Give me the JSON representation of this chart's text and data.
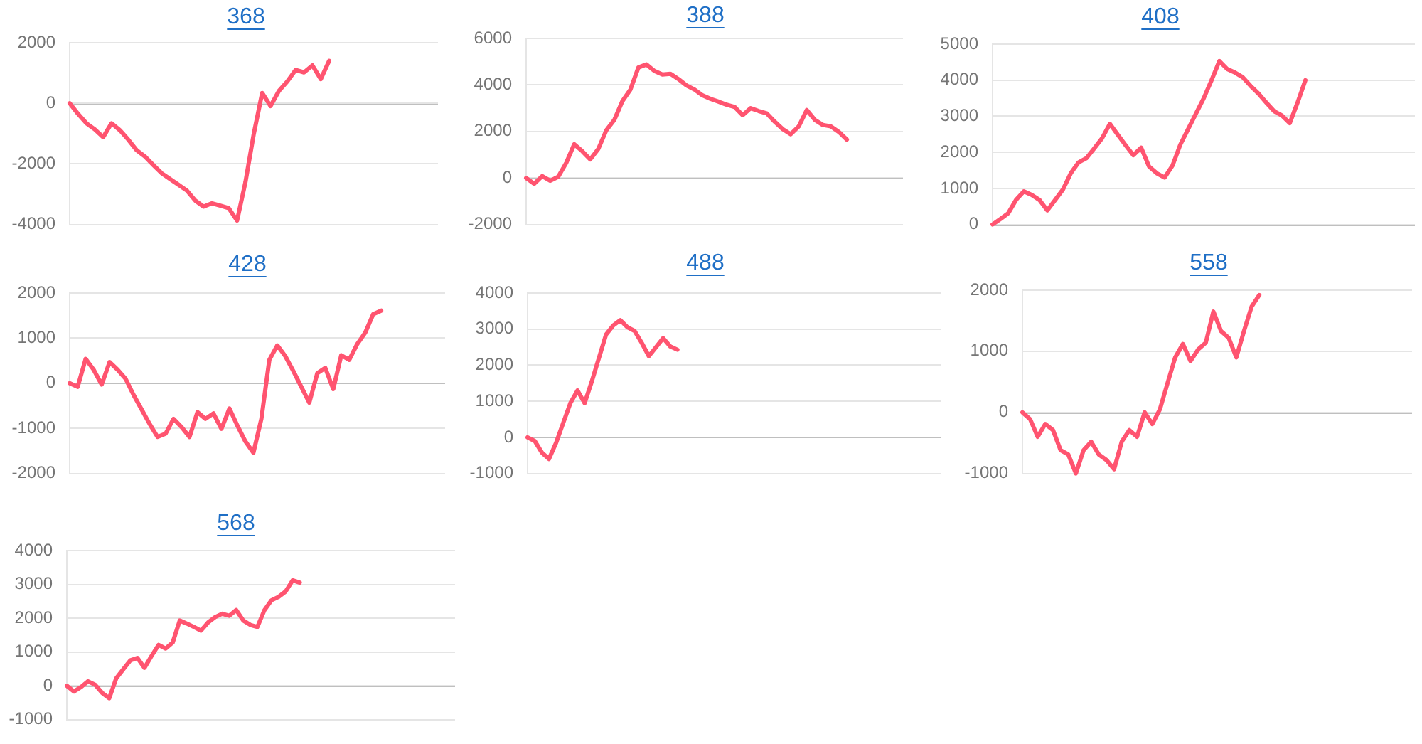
{
  "chart_data": [
    {
      "type": "line",
      "title": "368",
      "categories": [
        null,
        null,
        null,
        null,
        null,
        null,
        null,
        null,
        null,
        null,
        null,
        null,
        null,
        null,
        null,
        null,
        null,
        null,
        null,
        null,
        null,
        null,
        null,
        null,
        null,
        null,
        null,
        null,
        null,
        null,
        null,
        null,
        null,
        null,
        null,
        null,
        null,
        null,
        null,
        null,
        null,
        null,
        null,
        null,
        null
      ],
      "values": [
        0,
        -350,
        -660,
        -860,
        -1120,
        -660,
        -890,
        -1200,
        -1550,
        -1760,
        -2040,
        -2310,
        -2500,
        -2690,
        -2880,
        -3210,
        -3410,
        -3300,
        -3380,
        -3460,
        -3870,
        -2600,
        -1000,
        340,
        -90,
        410,
        720,
        1100,
        1020,
        1250,
        800,
        1400,
        null,
        null,
        null,
        null,
        null,
        null,
        null,
        null,
        null,
        null,
        null,
        null,
        null
      ],
      "color": "#ff5470",
      "ylim": [
        -4000,
        2000
      ],
      "yticks": [
        -4000,
        -2000,
        0,
        2000
      ],
      "grid": "y",
      "tick_labels": "y",
      "ref_lines": [
        {
          "axis": "y",
          "value": 0,
          "color": "#bfbfbf"
        }
      ]
    },
    {
      "type": "line",
      "title": "388",
      "categories": [
        null,
        null,
        null,
        null,
        null,
        null,
        null,
        null,
        null,
        null,
        null,
        null,
        null,
        null,
        null,
        null,
        null,
        null,
        null,
        null,
        null,
        null,
        null,
        null,
        null,
        null,
        null,
        null,
        null,
        null,
        null,
        null,
        null,
        null,
        null,
        null,
        null,
        null,
        null,
        null,
        null,
        null,
        null,
        null,
        null,
        null,
        null,
        null
      ],
      "values": [
        0,
        -250,
        80,
        -120,
        50,
        650,
        1450,
        1150,
        800,
        1250,
        2050,
        2500,
        3300,
        3800,
        4750,
        4880,
        4600,
        4450,
        4480,
        4250,
        3980,
        3800,
        3550,
        3400,
        3280,
        3150,
        3050,
        2700,
        3000,
        2880,
        2780,
        2420,
        2100,
        1880,
        2220,
        2920,
        2500,
        2280,
        2220,
        1980,
        1650,
        null,
        null,
        null,
        null,
        null,
        null,
        null
      ],
      "color": "#ff5470",
      "ylim": [
        -2000,
        6000
      ],
      "yticks": [
        -2000,
        0,
        2000,
        4000,
        6000
      ],
      "grid": "y",
      "tick_labels": "y",
      "ref_lines": [
        {
          "axis": "y",
          "value": 0,
          "color": "#bfbfbf"
        }
      ]
    },
    {
      "type": "line",
      "title": "408",
      "categories": [
        null,
        null,
        null,
        null,
        null,
        null,
        null,
        null,
        null,
        null,
        null,
        null,
        null,
        null,
        null,
        null,
        null,
        null,
        null,
        null,
        null,
        null,
        null,
        null,
        null,
        null,
        null,
        null,
        null,
        null,
        null,
        null,
        null,
        null,
        null,
        null,
        null,
        null,
        null,
        null,
        null,
        null,
        null,
        null,
        null,
        null,
        null,
        null,
        null,
        null,
        null,
        null,
        null,
        null,
        null
      ],
      "values": [
        0,
        150,
        310,
        680,
        920,
        820,
        680,
        390,
        680,
        970,
        1420,
        1720,
        1840,
        2110,
        2390,
        2790,
        2490,
        2200,
        1920,
        2130,
        1610,
        1420,
        1300,
        1630,
        2210,
        2640,
        3070,
        3500,
        4000,
        4530,
        4310,
        4210,
        4080,
        3840,
        3630,
        3380,
        3140,
        3020,
        2810,
        3380,
        4000,
        null,
        null,
        null,
        null,
        null,
        null,
        null,
        null,
        null,
        null,
        null,
        null,
        null,
        null
      ],
      "color": "#ff5470",
      "ylim": [
        0,
        5000
      ],
      "yticks": [
        0,
        1000,
        2000,
        3000,
        4000,
        5000
      ],
      "grid": "y",
      "tick_labels": "y",
      "ref_lines": [
        {
          "axis": "y",
          "value": 0,
          "color": "#bfbfbf"
        }
      ]
    },
    {
      "type": "line",
      "title": "428",
      "categories": [
        null,
        null,
        null,
        null,
        null,
        null,
        null,
        null,
        null,
        null,
        null,
        null,
        null,
        null,
        null,
        null,
        null,
        null,
        null,
        null,
        null,
        null,
        null,
        null,
        null,
        null,
        null,
        null,
        null,
        null,
        null,
        null,
        null,
        null,
        null,
        null,
        null,
        null,
        null,
        null,
        null,
        null,
        null,
        null,
        null,
        null,
        null,
        null
      ],
      "values": [
        0,
        -80,
        540,
        300,
        -30,
        470,
        300,
        100,
        -260,
        -580,
        -900,
        -1190,
        -1120,
        -790,
        -970,
        -1190,
        -640,
        -790,
        -670,
        -1010,
        -560,
        -940,
        -1290,
        -1540,
        -790,
        520,
        840,
        600,
        270,
        -80,
        -430,
        220,
        340,
        -130,
        620,
        520,
        870,
        1120,
        1530,
        1610,
        null,
        null,
        null,
        null,
        null,
        null,
        null,
        null
      ],
      "color": "#ff5470",
      "ylim": [
        -2000,
        2000
      ],
      "yticks": [
        -2000,
        -1000,
        0,
        1000,
        2000
      ],
      "grid": "y",
      "tick_labels": "y",
      "ref_lines": [
        {
          "axis": "y",
          "value": 0,
          "color": "#bfbfbf"
        }
      ]
    },
    {
      "type": "line",
      "title": "488",
      "categories": [
        null,
        null,
        null,
        null,
        null,
        null,
        null,
        null,
        null,
        null,
        null,
        null,
        null,
        null,
        null,
        null,
        null,
        null,
        null,
        null,
        null,
        null,
        null,
        null,
        null,
        null,
        null,
        null,
        null,
        null,
        null,
        null,
        null,
        null,
        null,
        null,
        null,
        null,
        null,
        null,
        null,
        null,
        null,
        null,
        null,
        null,
        null,
        null,
        null,
        null,
        null,
        null,
        null,
        null,
        null,
        null,
        null,
        null,
        null
      ],
      "values": [
        0,
        -100,
        -420,
        -600,
        -150,
        400,
        950,
        1300,
        950,
        1550,
        2200,
        2850,
        3100,
        3250,
        3050,
        2950,
        2620,
        2250,
        2500,
        2750,
        2520,
        2430,
        null,
        null,
        null,
        null,
        null,
        null,
        null,
        null,
        null,
        null,
        null,
        null,
        null,
        null,
        null,
        null,
        null,
        null,
        null,
        null,
        null,
        null,
        null,
        null,
        null,
        null,
        null,
        null,
        null,
        null,
        null,
        null,
        null,
        null,
        null,
        null,
        null
      ],
      "color": "#ff5470",
      "ylim": [
        -1000,
        4000
      ],
      "yticks": [
        -1000,
        0,
        1000,
        2000,
        3000,
        4000
      ],
      "grid": "y",
      "tick_labels": "y",
      "ref_lines": [
        {
          "axis": "y",
          "value": 0,
          "color": "#bfbfbf"
        }
      ]
    },
    {
      "type": "line",
      "title": "558",
      "categories": [
        null,
        null,
        null,
        null,
        null,
        null,
        null,
        null,
        null,
        null,
        null,
        null,
        null,
        null,
        null,
        null,
        null,
        null,
        null,
        null,
        null,
        null,
        null,
        null,
        null,
        null,
        null,
        null,
        null,
        null,
        null,
        null,
        null,
        null,
        null,
        null,
        null,
        null,
        null,
        null,
        null,
        null,
        null,
        null,
        null,
        null,
        null,
        null,
        null,
        null,
        null,
        null
      ],
      "values": [
        0,
        -110,
        -400,
        -190,
        -290,
        -620,
        -690,
        -1000,
        -620,
        -480,
        -690,
        -780,
        -930,
        -480,
        -290,
        -400,
        0,
        -190,
        50,
        480,
        900,
        1120,
        840,
        1030,
        1140,
        1650,
        1330,
        1220,
        900,
        1330,
        1730,
        1920,
        null,
        null,
        null,
        null,
        null,
        null,
        null,
        null,
        null,
        null,
        null,
        null,
        null,
        null,
        null,
        null,
        null,
        null,
        null,
        null
      ],
      "color": "#ff5470",
      "ylim": [
        -1000,
        2000
      ],
      "yticks": [
        -1000,
        0,
        1000,
        2000
      ],
      "grid": "y",
      "tick_labels": "y",
      "ref_lines": [
        {
          "axis": "y",
          "value": 0,
          "color": "#bfbfbf"
        }
      ]
    },
    {
      "type": "line",
      "title": "568",
      "categories": [
        null,
        null,
        null,
        null,
        null,
        null,
        null,
        null,
        null,
        null,
        null,
        null,
        null,
        null,
        null,
        null,
        null,
        null,
        null,
        null,
        null,
        null,
        null,
        null,
        null,
        null,
        null,
        null,
        null,
        null,
        null,
        null,
        null,
        null,
        null,
        null,
        null,
        null,
        null,
        null,
        null,
        null,
        null,
        null,
        null,
        null,
        null,
        null,
        null,
        null,
        null,
        null,
        null,
        null,
        null,
        null
      ],
      "values": [
        0,
        -170,
        -40,
        130,
        30,
        -210,
        -370,
        220,
        490,
        750,
        820,
        530,
        880,
        1210,
        1100,
        1280,
        1930,
        1840,
        1740,
        1630,
        1870,
        2030,
        2130,
        2070,
        2240,
        1930,
        1800,
        1740,
        2240,
        2530,
        2630,
        2790,
        3120,
        3050,
        null,
        null,
        null,
        null,
        null,
        null,
        null,
        null,
        null,
        null,
        null,
        null,
        null,
        null,
        null,
        null,
        null,
        null,
        null,
        null,
        null,
        null
      ],
      "color": "#ff5470",
      "ylim": [
        -1000,
        4000
      ],
      "yticks": [
        -1000,
        0,
        1000,
        2000,
        3000,
        4000
      ],
      "grid": "y",
      "tick_labels": "y",
      "ref_lines": [
        {
          "axis": "y",
          "value": 0,
          "color": "#bfbfbf"
        }
      ]
    }
  ]
}
